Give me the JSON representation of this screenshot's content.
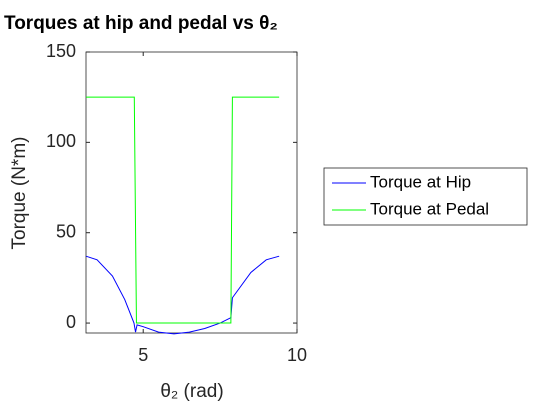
{
  "chart_data": {
    "type": "line",
    "title": "Torques at hip and pedal vs θ₂",
    "xlabel": "θ₂ (rad)",
    "ylabel": "Torque (N*m)",
    "xlim": [
      3.14,
      10
    ],
    "ylim": [
      -5.5,
      150
    ],
    "xticks": [
      5,
      10
    ],
    "yticks": [
      0,
      50,
      100,
      150
    ],
    "grid": false,
    "legend": "outside-right",
    "series": [
      {
        "name": "Torque at Hip",
        "color": "#0000ff",
        "x": [
          3.14,
          3.5,
          4.0,
          4.4,
          4.7,
          4.75,
          4.8,
          5.0,
          5.5,
          6.0,
          6.5,
          7.0,
          7.5,
          7.85,
          7.9,
          8.5,
          9.0,
          9.42
        ],
        "values": [
          37,
          35,
          26,
          13,
          0,
          -5,
          -1,
          -2,
          -5,
          -6,
          -5,
          -3,
          0,
          3,
          14,
          28,
          35,
          37
        ]
      },
      {
        "name": "Torque at Pedal",
        "color": "#00ff00",
        "x": [
          3.14,
          4.71,
          4.78,
          7.85,
          7.9,
          9.42
        ],
        "values": [
          125,
          125,
          0,
          0,
          125,
          125
        ]
      }
    ]
  }
}
